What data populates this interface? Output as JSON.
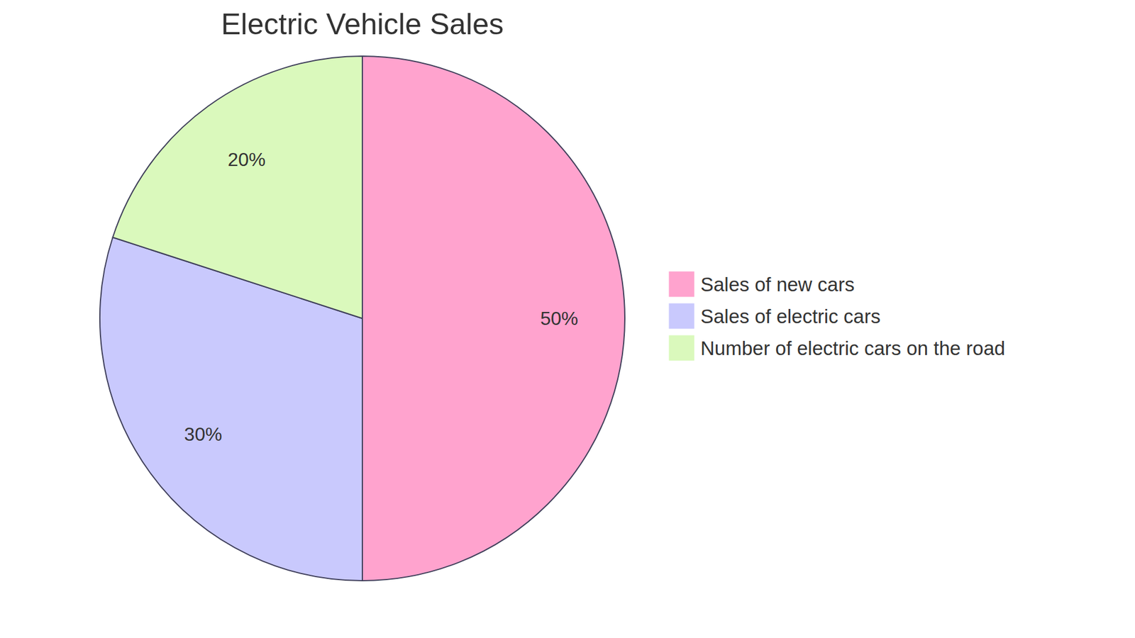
{
  "chart_data": {
    "type": "pie",
    "title": "Electric Vehicle Sales",
    "categories": [
      "Sales of new cars",
      "Sales of electric cars",
      "Number of electric cars on the road"
    ],
    "values": [
      50,
      30,
      20
    ],
    "value_labels": [
      "50%",
      "30%",
      "20%"
    ],
    "colors": [
      "#ffa3ce",
      "#c9c9fd",
      "#daf9bc"
    ],
    "data_labels": true,
    "legend": "right"
  }
}
